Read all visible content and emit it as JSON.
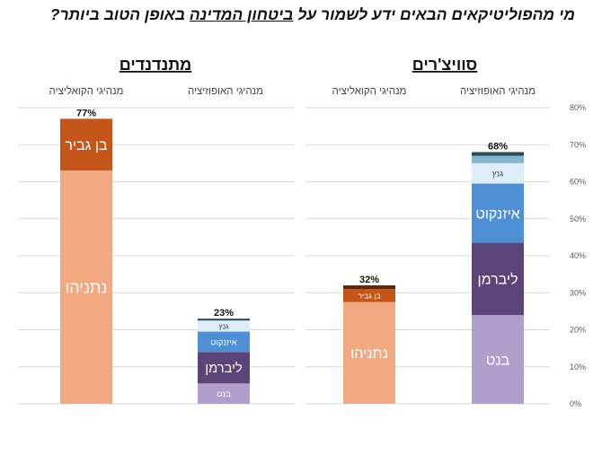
{
  "question": {
    "before": "מי מהפוליטיקאים הבאים ידע לשמור על ",
    "underlined": "ביטחון המדינה",
    "after": " באופן הטוב ביותר?"
  },
  "chart_data": {
    "type": "bar",
    "stacked": true,
    "ylim": [
      0,
      80
    ],
    "yticks": [
      "0%",
      "10%",
      "20%",
      "30%",
      "40%",
      "50%",
      "60%",
      "70%",
      "80%"
    ],
    "grid": true,
    "groups": [
      {
        "label": "סוויצ'רים",
        "columns": [
          {
            "header": "מנהיגי האופוזיציה",
            "total": 68,
            "total_label": "68%",
            "segments": [
              {
                "name": "בנט",
                "value": 24,
                "color": "#b19fcb"
              },
              {
                "name": "ליברמן",
                "value": 19.5,
                "color": "#5b4478"
              },
              {
                "name": "איזנקוט",
                "value": 16,
                "color": "#4f8fd6"
              },
              {
                "name": "גנץ",
                "value": 5.5,
                "color": "#ddeef8"
              },
              {
                "name": "",
                "value": 2,
                "color": "#82b7cf"
              },
              {
                "name": "",
                "value": 1,
                "color": "#2e4b5a"
              }
            ]
          },
          {
            "header": "מנהיגי הקואליציה",
            "total": 32,
            "total_label": "32%",
            "segments": [
              {
                "name": "נתניהו",
                "value": 27.5,
                "color": "#f2a982"
              },
              {
                "name": "בן גביר",
                "value": 3.5,
                "color": "#c55518"
              },
              {
                "name": "",
                "value": 1,
                "color": "#5e2a14"
              }
            ]
          }
        ]
      },
      {
        "label": "מתנדנדים",
        "columns": [
          {
            "header": "מנהיגי האופוזיציה",
            "total": 23,
            "total_label": "23%",
            "segments": [
              {
                "name": "בנט",
                "value": 5.5,
                "color": "#b19fcb"
              },
              {
                "name": "ליברמן",
                "value": 8.5,
                "color": "#5b4478"
              },
              {
                "name": "איזנקוט",
                "value": 5.5,
                "color": "#4f8fd6"
              },
              {
                "name": "גנץ",
                "value": 3,
                "color": "#ddeef8"
              },
              {
                "name": "",
                "value": 0.5,
                "color": "#2e4b5a"
              }
            ]
          },
          {
            "header": "מנהיגי הקואליציה",
            "total": 77,
            "total_label": "77%",
            "segments": [
              {
                "name": "נתניהו",
                "value": 63,
                "color": "#f2a982"
              },
              {
                "name": "בן גביר",
                "value": 14,
                "color": "#c55518"
              }
            ]
          }
        ]
      }
    ]
  }
}
